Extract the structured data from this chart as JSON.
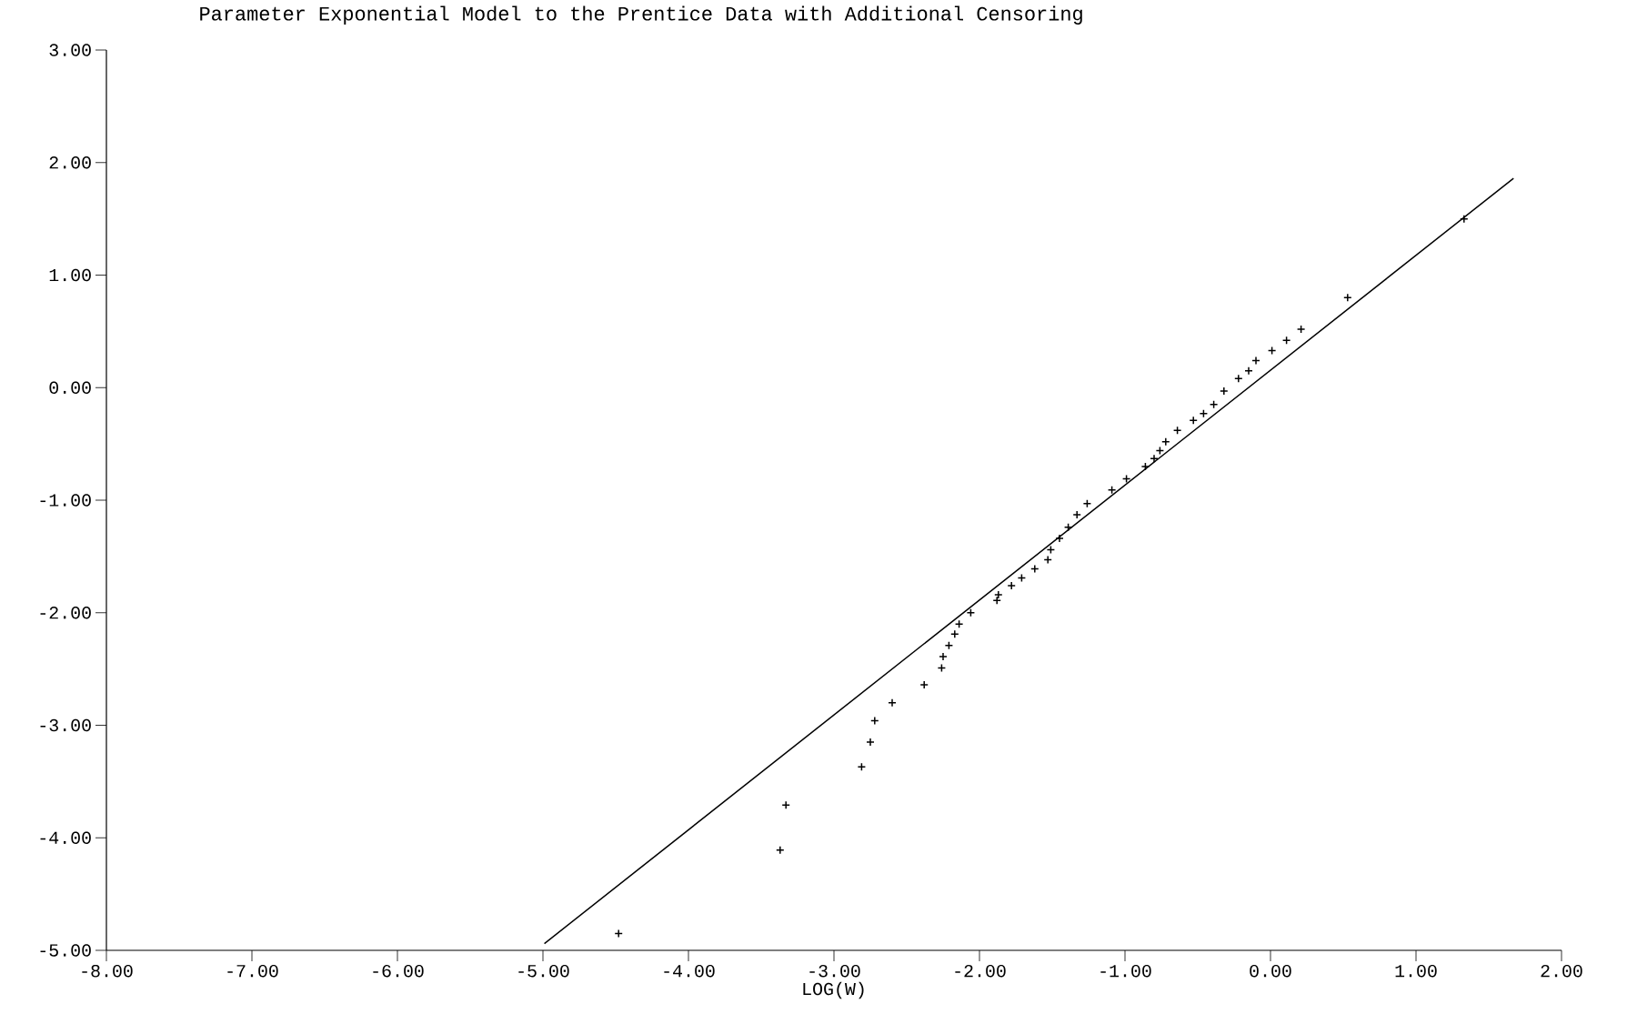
{
  "chart_data": {
    "type": "scatter",
    "title": "Parameter Exponential Model to the Prentice Data with Additional Censoring",
    "xlabel": "LOG(W)",
    "xlim": [
      -8,
      2
    ],
    "ylim": [
      -5,
      3
    ],
    "xticks": [
      {
        "value": -8,
        "label": "-8.00"
      },
      {
        "value": -7,
        "label": "-7.00"
      },
      {
        "value": -6,
        "label": "-6.00"
      },
      {
        "value": -5,
        "label": "-5.00"
      },
      {
        "value": -4,
        "label": "-4.00"
      },
      {
        "value": -3,
        "label": "-3.00"
      },
      {
        "value": -2,
        "label": "-2.00"
      },
      {
        "value": -1,
        "label": "-1.00"
      },
      {
        "value": 0,
        "label": "0.00"
      },
      {
        "value": 1,
        "label": "1.00"
      },
      {
        "value": 2,
        "label": "2.00"
      }
    ],
    "yticks": [
      {
        "value": -5,
        "label": "-5.00"
      },
      {
        "value": -4,
        "label": "-4.00"
      },
      {
        "value": -3,
        "label": "-3.00"
      },
      {
        "value": -2,
        "label": "-2.00"
      },
      {
        "value": -1,
        "label": "-1.00"
      },
      {
        "value": 0,
        "label": "0.00"
      },
      {
        "value": 1,
        "label": "1.00"
      },
      {
        "value": 2,
        "label": "2.00"
      },
      {
        "value": 3,
        "label": "3.00"
      }
    ],
    "grid": false,
    "series": [
      {
        "marker": "cross",
        "color": "#000000",
        "x": [
          -4.48,
          -3.37,
          -3.33,
          -2.81,
          -2.75,
          -2.72,
          -2.6,
          -2.38,
          -2.26,
          -2.25,
          -2.21,
          -2.17,
          -2.14,
          -2.06,
          -1.88,
          -1.87,
          -1.78,
          -1.71,
          -1.62,
          -1.53,
          -1.51,
          -1.45,
          -1.39,
          -1.33,
          -1.26,
          -1.09,
          -0.99,
          -0.86,
          -0.8,
          -0.76,
          -0.72,
          -0.64,
          -0.53,
          -0.46,
          -0.39,
          -0.32,
          -0.22,
          -0.15,
          -0.1,
          0.01,
          0.11,
          0.21,
          0.53,
          1.33
        ],
        "values": [
          -4.85,
          -4.11,
          -3.71,
          -3.37,
          -3.15,
          -2.96,
          -2.8,
          -2.64,
          -2.49,
          -2.39,
          -2.29,
          -2.19,
          -2.1,
          -2.0,
          -1.89,
          -1.84,
          -1.76,
          -1.69,
          -1.61,
          -1.53,
          -1.44,
          -1.34,
          -1.24,
          -1.13,
          -1.03,
          -0.91,
          -0.81,
          -0.7,
          -0.63,
          -0.56,
          -0.48,
          -0.38,
          -0.29,
          -0.23,
          -0.15,
          -0.03,
          0.08,
          0.15,
          0.24,
          0.33,
          0.42,
          0.52,
          0.8,
          1.5
        ]
      },
      {
        "type": "line",
        "color": "#000000",
        "x": [
          -4.99,
          1.67
        ],
        "values": [
          -4.94,
          1.86
        ]
      }
    ]
  }
}
